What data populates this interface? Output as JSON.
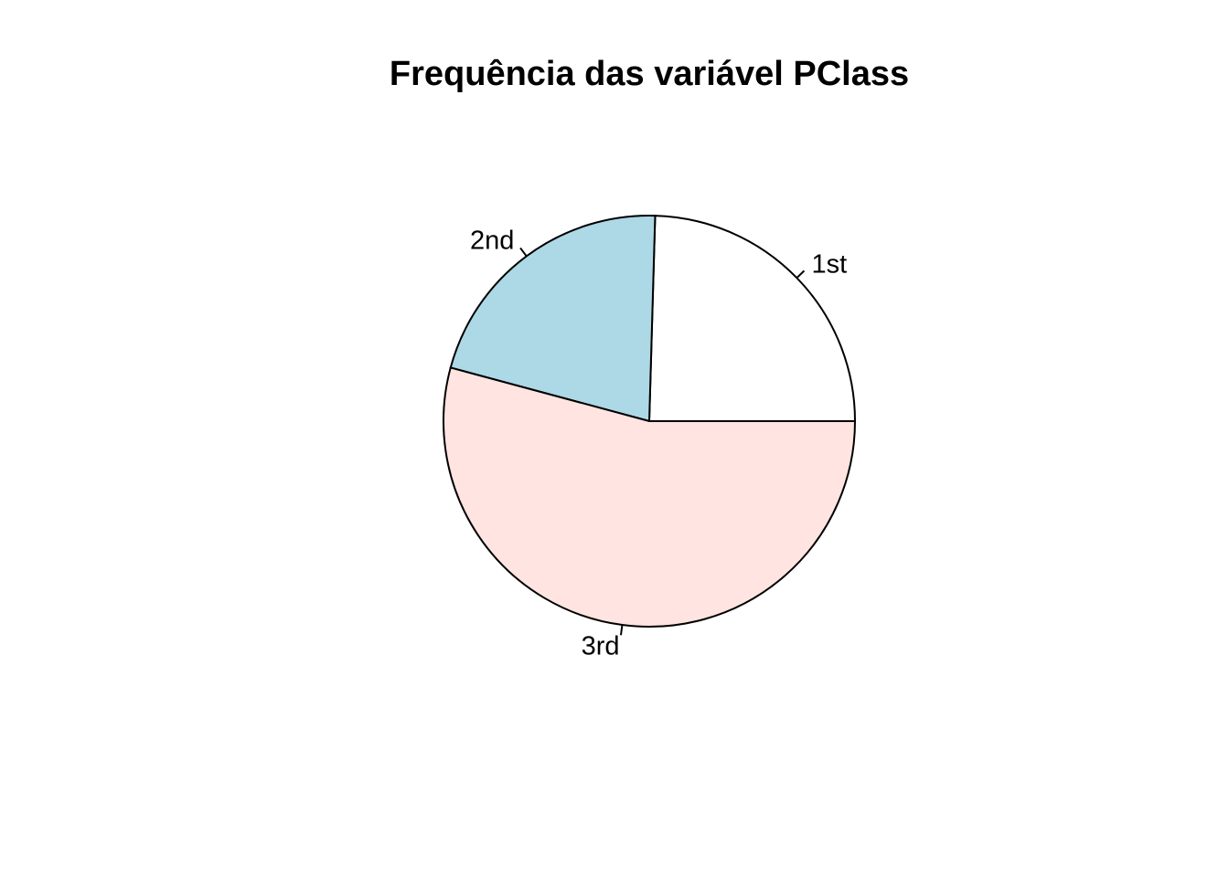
{
  "chart_data": {
    "type": "pie",
    "title": "Frequência das variável PClass",
    "categories": [
      "1st",
      "2nd",
      "3rd"
    ],
    "values": [
      322,
      279,
      711
    ],
    "colors": [
      "#FFFFFF",
      "#ADD8E6",
      "#FFE4E1"
    ],
    "start_angle_degrees": 0,
    "direction": "counterclockwise",
    "legend": "none"
  }
}
